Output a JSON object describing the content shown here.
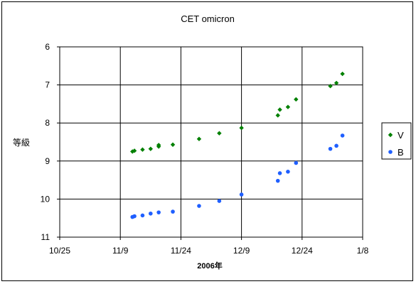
{
  "chart_data": {
    "type": "scatter",
    "title": "CET omicron",
    "xlabel": "2006年",
    "ylabel": "等級",
    "x_ticks": [
      "10/25",
      "11/9",
      "11/24",
      "12/9",
      "12/24",
      "1/8"
    ],
    "x_tick_days": [
      0,
      15,
      30,
      45,
      60,
      75
    ],
    "xlim_days": [
      0,
      75
    ],
    "ylim": [
      6,
      11
    ],
    "y_inverted": true,
    "y_ticks": [
      6,
      7,
      8,
      9,
      10,
      11
    ],
    "grid": true,
    "legend_position": "right",
    "series": [
      {
        "name": "V",
        "color": "#008000",
        "marker": "diamond",
        "points": [
          {
            "x_day": 18,
            "y": 8.75
          },
          {
            "x_day": 18.5,
            "y": 8.73
          },
          {
            "x_day": 20.5,
            "y": 8.7
          },
          {
            "x_day": 22.5,
            "y": 8.68
          },
          {
            "x_day": 24.5,
            "y": 8.62
          },
          {
            "x_day": 24.5,
            "y": 8.58
          },
          {
            "x_day": 28,
            "y": 8.57
          },
          {
            "x_day": 34.5,
            "y": 8.42
          },
          {
            "x_day": 39.5,
            "y": 8.27
          },
          {
            "x_day": 45,
            "y": 8.13
          },
          {
            "x_day": 54,
            "y": 7.8
          },
          {
            "x_day": 54.5,
            "y": 7.65
          },
          {
            "x_day": 56.5,
            "y": 7.58
          },
          {
            "x_day": 58.5,
            "y": 7.38
          },
          {
            "x_day": 67,
            "y": 7.03
          },
          {
            "x_day": 68.5,
            "y": 6.95
          },
          {
            "x_day": 70,
            "y": 6.71
          }
        ]
      },
      {
        "name": "B",
        "color": "#1f5fff",
        "marker": "circle",
        "points": [
          {
            "x_day": 18,
            "y": 10.47
          },
          {
            "x_day": 18.5,
            "y": 10.45
          },
          {
            "x_day": 20.5,
            "y": 10.43
          },
          {
            "x_day": 22.5,
            "y": 10.38
          },
          {
            "x_day": 24.5,
            "y": 10.35
          },
          {
            "x_day": 28,
            "y": 10.33
          },
          {
            "x_day": 34.5,
            "y": 10.18
          },
          {
            "x_day": 39.5,
            "y": 10.05
          },
          {
            "x_day": 45,
            "y": 9.88
          },
          {
            "x_day": 54,
            "y": 9.52
          },
          {
            "x_day": 54.5,
            "y": 9.32
          },
          {
            "x_day": 56.5,
            "y": 9.28
          },
          {
            "x_day": 58.5,
            "y": 9.05
          },
          {
            "x_day": 67,
            "y": 8.68
          },
          {
            "x_day": 68.5,
            "y": 8.6
          },
          {
            "x_day": 70,
            "y": 8.33
          }
        ]
      }
    ]
  }
}
